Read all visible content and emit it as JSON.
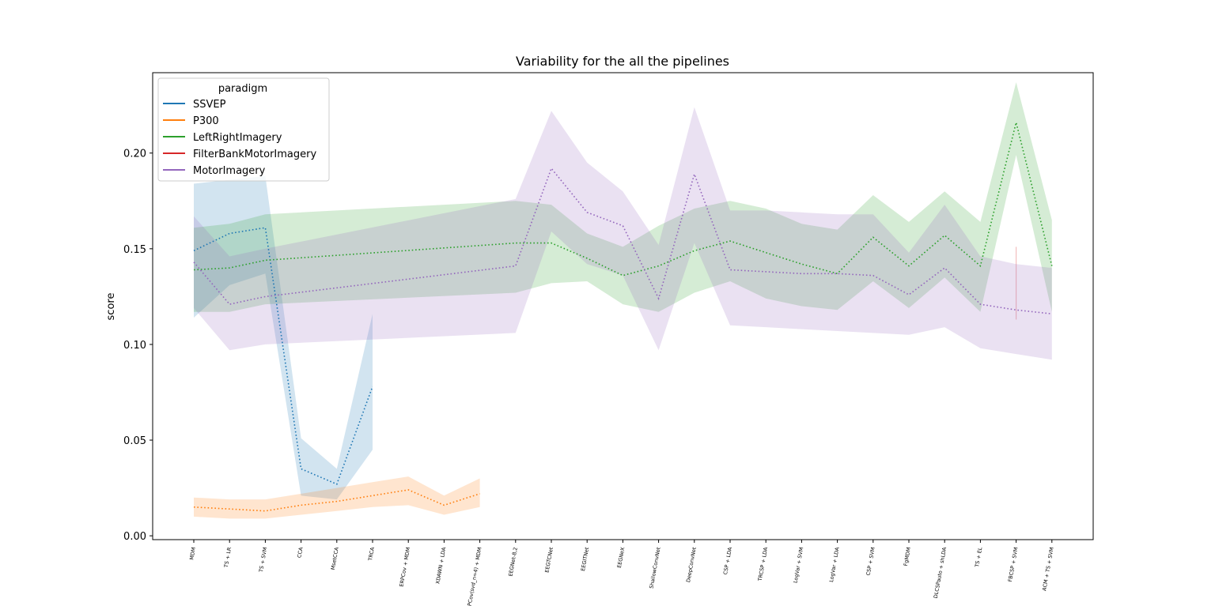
{
  "chart_data": {
    "type": "line",
    "title": "Variability for the all the pipelines",
    "xlabel": "",
    "ylabel": "score",
    "ylim": [
      -0.002,
      0.242
    ],
    "yticks": [
      0.0,
      0.05,
      0.1,
      0.15,
      0.2
    ],
    "ytick_labels": [
      "0.00",
      "0.05",
      "0.10",
      "0.15",
      "0.20"
    ],
    "grid": false,
    "legend_title": "paradigm",
    "legend_placement": "top-left",
    "categories": [
      "MDM",
      "TS + LR",
      "TS + SVM",
      "CCA",
      "MsetCCA",
      "TRCA",
      "ERPCov + MDM",
      "XDAWN + LDA",
      "ERPCov(svd_n=4) + MDM",
      "EEGNet-8,2",
      "EEGTCNet",
      "EEGITNet",
      "EEGNeX",
      "ShallowConvNet",
      "DeepConvNet",
      "CSP + LDA",
      "TRCSP + LDA",
      "LogVar + SVM",
      "LogVar + LDA",
      "CSP + SVM",
      "FgMDM",
      "DLCSPauto + shLDA",
      "TS + EL",
      "FBCSP + SVM",
      "ACM + TS + SVM"
    ],
    "series": [
      {
        "name": "SSVEP",
        "color": "#1f77b4",
        "x": [
          "MDM",
          "TS + LR",
          "TS + SVM",
          "CCA",
          "MsetCCA",
          "TRCA"
        ],
        "values": [
          0.149,
          0.158,
          0.161,
          0.035,
          0.027,
          0.078
        ],
        "lower": [
          0.114,
          0.131,
          0.137,
          0.021,
          0.019,
          0.045
        ],
        "upper": [
          0.184,
          0.186,
          0.188,
          0.051,
          0.035,
          0.116
        ]
      },
      {
        "name": "P300",
        "color": "#ff7f0e",
        "x": [
          "MDM",
          "TS + LR",
          "TS + SVM",
          "CCA",
          "MsetCCA",
          "TRCA",
          "ERPCov + MDM",
          "XDAWN + LDA",
          "ERPCov(svd_n=4) + MDM"
        ],
        "values": [
          0.015,
          0.014,
          0.013,
          0.016,
          0.018,
          0.021,
          0.024,
          0.016,
          0.022
        ],
        "lower": [
          0.01,
          0.009,
          0.009,
          0.011,
          0.013,
          0.015,
          0.016,
          0.011,
          0.015
        ],
        "upper": [
          0.02,
          0.019,
          0.019,
          0.022,
          0.025,
          0.028,
          0.031,
          0.021,
          0.03
        ]
      },
      {
        "name": "LeftRightImagery",
        "color": "#2ca02c",
        "x": [
          "MDM",
          "TS + LR",
          "TS + SVM",
          "EEGNet-8,2",
          "EEGTCNet",
          "EEGITNet",
          "EEGNeX",
          "ShallowConvNet",
          "DeepConvNet",
          "CSP + LDA",
          "TRCSP + LDA",
          "LogVar + SVM",
          "LogVar + LDA",
          "CSP + SVM",
          "FgMDM",
          "DLCSPauto + shLDA",
          "TS + EL",
          "FBCSP + SVM",
          "ACM + TS + SVM"
        ],
        "values": [
          0.139,
          0.14,
          0.144,
          0.153,
          0.153,
          0.145,
          0.136,
          0.141,
          0.149,
          0.154,
          0.148,
          0.142,
          0.137,
          0.156,
          0.141,
          0.157,
          0.141,
          0.216,
          0.141
        ],
        "lower": [
          0.117,
          0.117,
          0.121,
          0.127,
          0.132,
          0.133,
          0.121,
          0.117,
          0.127,
          0.133,
          0.124,
          0.12,
          0.118,
          0.133,
          0.119,
          0.135,
          0.117,
          0.199,
          0.117
        ],
        "upper": [
          0.161,
          0.163,
          0.168,
          0.175,
          0.173,
          0.158,
          0.151,
          0.162,
          0.171,
          0.175,
          0.171,
          0.163,
          0.16,
          0.178,
          0.164,
          0.18,
          0.164,
          0.237,
          0.165
        ]
      },
      {
        "name": "FilterBankMotorImagery",
        "color": "#d62728",
        "x": [
          "FBCSP + SVM"
        ],
        "values": [
          0.132
        ],
        "lower": [
          0.113
        ],
        "upper": [
          0.151
        ]
      },
      {
        "name": "MotorImagery",
        "color": "#9467bd",
        "x": [
          "MDM",
          "TS + LR",
          "TS + SVM",
          "EEGNet-8,2",
          "EEGTCNet",
          "EEGITNet",
          "EEGNeX",
          "ShallowConvNet",
          "DeepConvNet",
          "CSP + LDA",
          "TRCSP + LDA",
          "LogVar + SVM",
          "LogVar + LDA",
          "CSP + SVM",
          "FgMDM",
          "DLCSPauto + shLDA",
          "TS + EL",
          "FBCSP + SVM",
          "ACM + TS + SVM"
        ],
        "values": [
          0.143,
          0.121,
          0.125,
          0.141,
          0.192,
          0.169,
          0.162,
          0.124,
          0.189,
          0.139,
          0.138,
          0.137,
          0.137,
          0.136,
          0.126,
          0.14,
          0.121,
          0.118,
          0.116
        ],
        "lower": [
          0.119,
          0.097,
          0.1,
          0.106,
          0.159,
          0.142,
          0.136,
          0.097,
          0.153,
          0.11,
          0.109,
          0.108,
          0.107,
          0.106,
          0.105,
          0.109,
          0.098,
          0.095,
          0.092
        ],
        "upper": [
          0.167,
          0.146,
          0.15,
          0.176,
          0.222,
          0.195,
          0.18,
          0.152,
          0.224,
          0.17,
          0.17,
          0.169,
          0.168,
          0.168,
          0.148,
          0.173,
          0.146,
          0.142,
          0.14
        ]
      }
    ]
  }
}
